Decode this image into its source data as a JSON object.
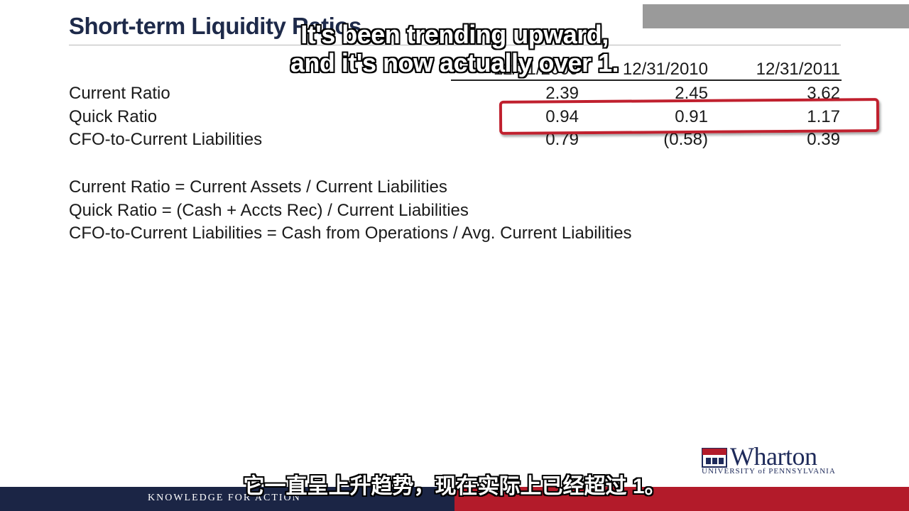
{
  "slide": {
    "title": "Short-term Liquidity Ratios",
    "columns": [
      "12/31/2009",
      "12/31/2010",
      "12/31/2011"
    ],
    "rows": [
      {
        "label": "Current Ratio",
        "values": [
          "2.39",
          "2.45",
          "3.62"
        ]
      },
      {
        "label": "Quick Ratio",
        "values": [
          "0.94",
          "0.91",
          "1.17"
        ]
      },
      {
        "label": "CFO-to-Current Liabilities",
        "values": [
          "0.79",
          "(0.58)",
          "0.39"
        ]
      }
    ],
    "formulas": [
      "Current Ratio = Current Assets / Current Liabilities",
      "Quick Ratio = (Cash + Accts Rec) / Current Liabilities",
      "CFO-to-Current Liabilities = Cash from Operations / Avg. Current Liabilities"
    ],
    "highlight_color": "#c0202e"
  },
  "captions": {
    "english_line1": "It's been trending upward,",
    "english_line2": "and it's now actually over 1.",
    "chinese": "它一直呈上升趋势，现在实际上已经超过 1。"
  },
  "branding": {
    "logo_word": "Wharton",
    "logo_subtitle": "UNIVERSITY of PENNSYLVANIA",
    "footer_tagline": "KNOWLEDGE FOR ACTION",
    "navy": "#1b2545",
    "red": "#b31b2a"
  }
}
